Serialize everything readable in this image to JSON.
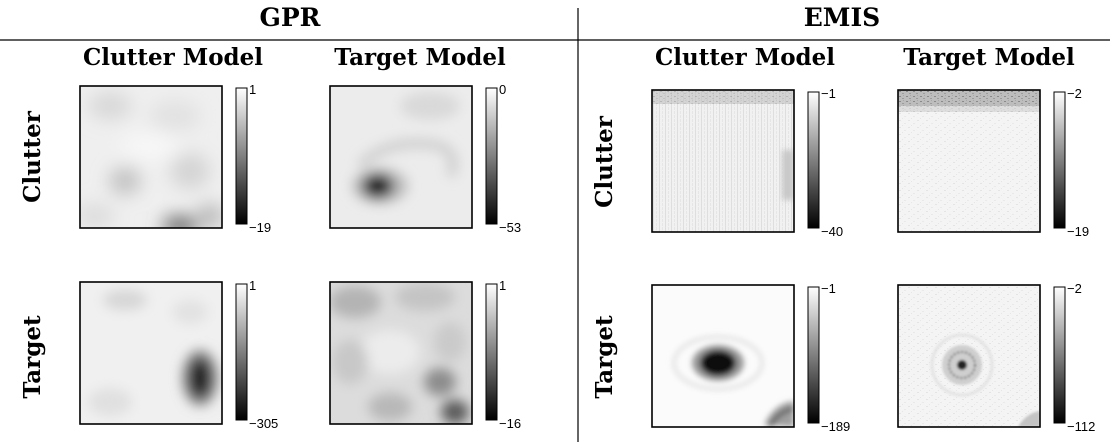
{
  "sections": [
    {
      "title": "GPR",
      "columns": [
        "Clutter Model",
        "Target Model"
      ]
    },
    {
      "title": "EMIS",
      "columns": [
        "Clutter Model",
        "Target Model"
      ]
    }
  ],
  "row_labels": [
    "Clutter",
    "Target"
  ],
  "panels": [
    {
      "section": 0,
      "row": 0,
      "col": 0,
      "pattern": "gpr-clutter-clutter",
      "cbar_max": "1",
      "cbar_min": "−19"
    },
    {
      "section": 0,
      "row": 0,
      "col": 1,
      "pattern": "gpr-clutter-target",
      "cbar_max": "0",
      "cbar_min": "−53"
    },
    {
      "section": 0,
      "row": 1,
      "col": 0,
      "pattern": "gpr-target-clutter",
      "cbar_max": "1",
      "cbar_min": "−305"
    },
    {
      "section": 0,
      "row": 1,
      "col": 1,
      "pattern": "gpr-target-target",
      "cbar_max": "1",
      "cbar_min": "−16"
    },
    {
      "section": 1,
      "row": 0,
      "col": 0,
      "pattern": "emis-clutter-clutter",
      "cbar_max": "−1",
      "cbar_min": "−40"
    },
    {
      "section": 1,
      "row": 0,
      "col": 1,
      "pattern": "emis-clutter-target",
      "cbar_max": "−2",
      "cbar_min": "−19"
    },
    {
      "section": 1,
      "row": 1,
      "col": 0,
      "pattern": "emis-target-clutter",
      "cbar_max": "−1",
      "cbar_min": "−189"
    },
    {
      "section": 1,
      "row": 1,
      "col": 1,
      "pattern": "emis-target-target",
      "cbar_max": "−2",
      "cbar_min": "−112"
    }
  ]
}
